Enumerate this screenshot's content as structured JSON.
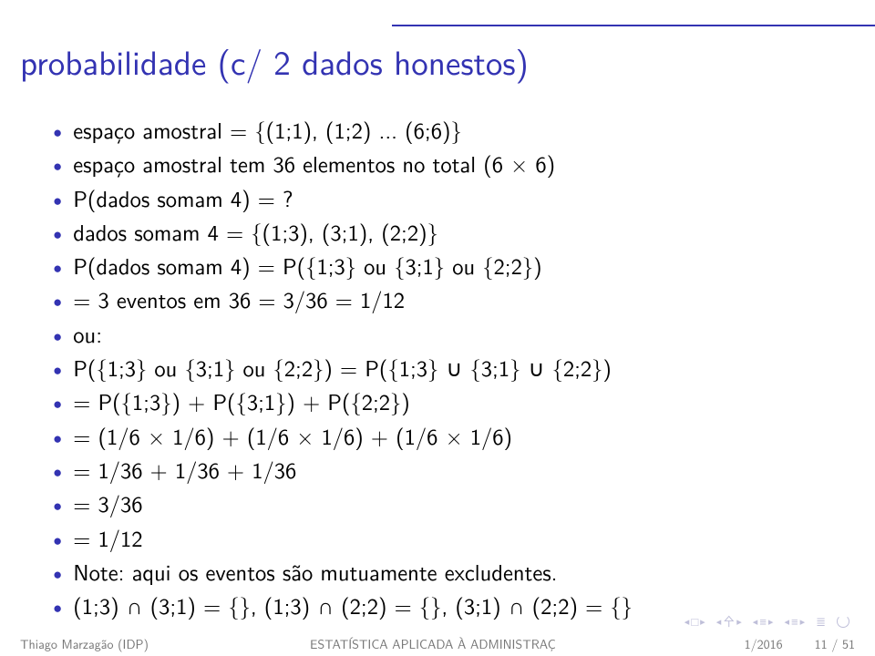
{
  "colors": {
    "accent": "#3333b2",
    "text": "#000000",
    "footer": "#777777",
    "nav": "#bfbfd9",
    "background": "#ffffff"
  },
  "typography": {
    "title_fontsize": 37,
    "body_fontsize": 24.5,
    "footer_fontsize": 14
  },
  "title": "probabilidade (c/ 2 dados honestos)",
  "items": [
    "espaço amostral = {(1;1), (1;2) ... (6;6)}",
    "espaço amostral tem 36 elementos no total (6 × 6)",
    "P(dados somam 4) = ?",
    "dados somam 4 = {(1;3), (3;1), (2;2)}",
    "P(dados somam 4) = P({1;3} ou {3;1} ou {2;2})",
    "= 3 eventos em 36 = 3/36 = 1/12",
    "ou:",
    "P({1;3} ou {3;1} ou {2;2}) = P({1;3} ∪ {3;1} ∪ {2;2})",
    "= P({1;3}) + P({3;1}) + P({2;2})",
    "= (1/6 × 1/6) + (1/6 × 1/6) + (1/6 × 1/6)",
    "= 1/36 + 1/36 + 1/36",
    "= 3/36",
    "= 1/12",
    "Note: aqui os eventos são mutuamente excludentes.",
    "(1;3) ∩ (3;1) = {}, (1;3) ∩ (2;2) = {}, (3;1) ∩ (2;2) = {}"
  ],
  "footer": {
    "left": "Thiago Marzagão (IDP)",
    "center": "ESTATÍSTICA APLICADA À ADMINISTRAÇ",
    "right_date": "1/2016",
    "right_page": "11 / 51"
  }
}
